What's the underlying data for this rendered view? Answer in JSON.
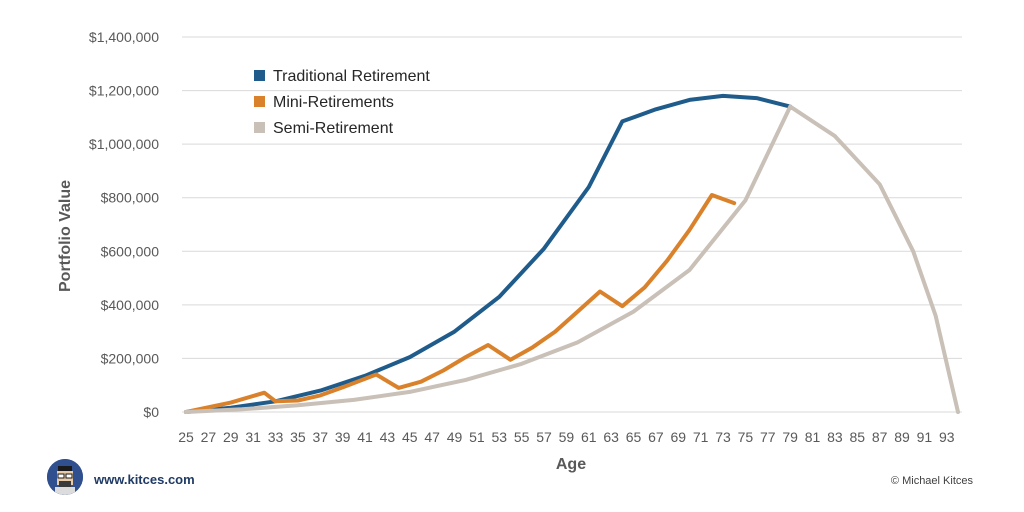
{
  "chart_data": {
    "type": "line",
    "xlabel": "Age",
    "ylabel": "Portfolio Value",
    "xlim": [
      25,
      94
    ],
    "ylim": [
      0,
      1400000
    ],
    "x_ticks": [
      25,
      27,
      29,
      31,
      33,
      35,
      37,
      39,
      41,
      43,
      45,
      47,
      49,
      51,
      53,
      55,
      57,
      59,
      61,
      63,
      65,
      67,
      69,
      71,
      73,
      75,
      77,
      79,
      81,
      83,
      85,
      87,
      89,
      91,
      93
    ],
    "y_ticks": [
      0,
      200000,
      400000,
      600000,
      800000,
      1000000,
      1200000,
      1400000
    ],
    "y_tick_labels": [
      "$0",
      "$200,000",
      "$400,000",
      "$600,000",
      "$800,000",
      "$1,000,000",
      "$1,200,000",
      "$1,400,000"
    ],
    "grid": true,
    "legend_position": "top-left",
    "series": [
      {
        "name": "Traditional Retirement",
        "color": "#1f5c8b",
        "points": [
          [
            25,
            0
          ],
          [
            29,
            16000
          ],
          [
            33,
            40000
          ],
          [
            37,
            80000
          ],
          [
            41,
            135000
          ],
          [
            45,
            205000
          ],
          [
            49,
            300000
          ],
          [
            53,
            430000
          ],
          [
            57,
            610000
          ],
          [
            61,
            840000
          ],
          [
            64,
            1085000
          ],
          [
            67,
            1130000
          ],
          [
            70,
            1165000
          ],
          [
            73,
            1180000
          ],
          [
            76,
            1172000
          ],
          [
            79,
            1140000
          ]
        ]
      },
      {
        "name": "Mini-Retirements",
        "color": "#d9822b",
        "points": [
          [
            25,
            0
          ],
          [
            29,
            35000
          ],
          [
            32,
            72000
          ],
          [
            33,
            40000
          ],
          [
            35,
            43000
          ],
          [
            37,
            62000
          ],
          [
            39,
            92000
          ],
          [
            42,
            140000
          ],
          [
            44,
            90000
          ],
          [
            46,
            113000
          ],
          [
            48,
            155000
          ],
          [
            50,
            205000
          ],
          [
            52,
            250000
          ],
          [
            54,
            195000
          ],
          [
            56,
            242000
          ],
          [
            58,
            300000
          ],
          [
            60,
            375000
          ],
          [
            62,
            450000
          ],
          [
            64,
            395000
          ],
          [
            66,
            465000
          ],
          [
            68,
            565000
          ],
          [
            70,
            680000
          ],
          [
            72,
            810000
          ],
          [
            74,
            780000
          ]
        ]
      },
      {
        "name": "Semi-Retirement",
        "color": "#c9c0b7",
        "points": [
          [
            25,
            0
          ],
          [
            30,
            10000
          ],
          [
            35,
            25000
          ],
          [
            40,
            45000
          ],
          [
            45,
            75000
          ],
          [
            50,
            120000
          ],
          [
            55,
            180000
          ],
          [
            60,
            260000
          ],
          [
            65,
            375000
          ],
          [
            70,
            530000
          ],
          [
            75,
            790000
          ],
          [
            79,
            1140000
          ],
          [
            83,
            1030000
          ],
          [
            87,
            850000
          ],
          [
            90,
            600000
          ],
          [
            92,
            360000
          ],
          [
            94,
            0
          ]
        ]
      }
    ]
  },
  "footer": {
    "site": "www.kitces.com",
    "copyright": "© Michael Kitces"
  }
}
